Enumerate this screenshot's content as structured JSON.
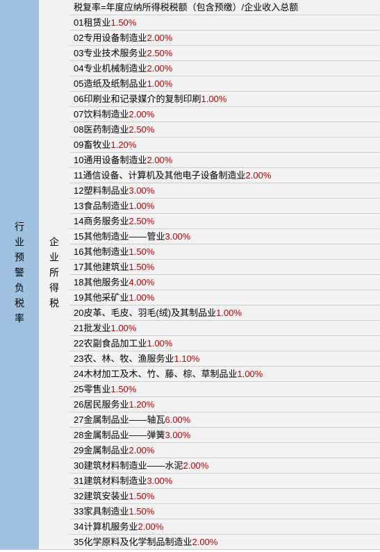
{
  "left_label": "行业预警负税率",
  "mid_label": "企业所得税",
  "formula": "税复率=年度应纳所得税税额（包含预缴）/企业收入总额",
  "rows": [
    {
      "num": "01",
      "name": "租赁业",
      "rate": "1.50%"
    },
    {
      "num": "02",
      "name": "专用设备制造业",
      "rate": "2.00%"
    },
    {
      "num": "03",
      "name": "专业技术服务业",
      "rate": "2.50%"
    },
    {
      "num": "04",
      "name": "专业机械制造业",
      "rate": "2.00%"
    },
    {
      "num": "05",
      "name": "造纸及纸制品业",
      "rate": "1.00%"
    },
    {
      "num": "06",
      "name": "印刷业和记录媒介的复制印刷",
      "rate": "1.00%"
    },
    {
      "num": "07",
      "name": "饮料制造业",
      "rate": "2.00%"
    },
    {
      "num": "08",
      "name": "医药制造业",
      "rate": "2.50%"
    },
    {
      "num": "09",
      "name": "畜牧业",
      "rate": "1.20%"
    },
    {
      "num": "10",
      "name": "通用设备制造业",
      "rate": "2.00%"
    },
    {
      "num": "11",
      "name": "通信设备、计算机及其他电子设备制造业",
      "rate": "2.00%"
    },
    {
      "num": "12",
      "name": "塑料制品业",
      "rate": "3.00%"
    },
    {
      "num": "13",
      "name": "食品制造业",
      "rate": "1.00%"
    },
    {
      "num": "14",
      "name": "商务服务业",
      "rate": "2.50%"
    },
    {
      "num": "15",
      "name": "其他制造业——管业",
      "rate": "3.00%"
    },
    {
      "num": "16",
      "name": "其他制造业",
      "rate": "1.50%"
    },
    {
      "num": "17",
      "name": "其他建筑业",
      "rate": "1.50%"
    },
    {
      "num": "18",
      "name": "其他服务业",
      "rate": "4.00%"
    },
    {
      "num": "19",
      "name": "其他采矿业",
      "rate": "1.00%"
    },
    {
      "num": "20",
      "name": "皮革、毛皮、羽毛(绒)及其制品业",
      "rate": "1.00%"
    },
    {
      "num": "21",
      "name": "批发业",
      "rate": "1.00%"
    },
    {
      "num": "22",
      "name": "农副食品加工业",
      "rate": "1.00%"
    },
    {
      "num": "23",
      "name": "农、林、牧、渔服务业",
      "rate": "1.10%"
    },
    {
      "num": "24",
      "name": "木材加工及木、竹、藤、棕、草制品业",
      "rate": "1.00%"
    },
    {
      "num": "25",
      "name": "零售业",
      "rate": "1.50%"
    },
    {
      "num": "26",
      "name": "居民服务业",
      "rate": "1.20%"
    },
    {
      "num": "27",
      "name": "金属制品业——轴瓦",
      "rate": "6.00%"
    },
    {
      "num": "28",
      "name": "金属制品业——弹簧",
      "rate": "3.00%"
    },
    {
      "num": "29",
      "name": "金属制品业",
      "rate": "2.00%",
      "nospace": true
    },
    {
      "num": "30",
      "name": "建筑材料制造业——水泥",
      "rate": "2.00%"
    },
    {
      "num": "31",
      "name": "建筑材料制造业",
      "rate": "3.00%"
    },
    {
      "num": "32",
      "name": "建筑安装业",
      "rate": "1.50%"
    },
    {
      "num": "33",
      "name": "家具制造业",
      "rate": "1.50%"
    },
    {
      "num": "34",
      "name": "计算机服务业",
      "rate": "2.00%"
    },
    {
      "num": "35",
      "name": "化学原料及化学制品制造业",
      "rate": "2.00%"
    }
  ],
  "colors": {
    "left_bg": "#9fc2e0",
    "row_bg": "#f2f2f2",
    "rate_color": "#c00000",
    "text_color": "#000000",
    "border_color": "#cccccc"
  }
}
